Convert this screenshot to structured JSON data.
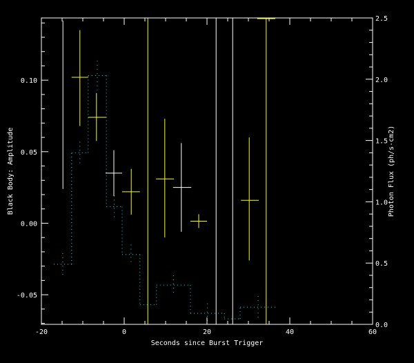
{
  "chart_data": {
    "type": "scatter",
    "xlabel": "Seconds since Burst Trigger",
    "ylabel": "Black Body: Amplitude",
    "ylabel_right": "Photon Flux (ph/s-cm2)",
    "xlim": [
      -20,
      60
    ],
    "ylim": [
      -0.0707,
      0.1435
    ],
    "ylim_right": [
      0.0,
      2.5
    ],
    "x_ticks": [
      "-20",
      "0",
      "20",
      "40",
      "60"
    ],
    "y_ticks": [
      "-0.05",
      "0.00",
      "0.05",
      "0.10"
    ],
    "y_ticks_right": [
      "0.0",
      "0.5",
      "1.0",
      "1.5",
      "2.0",
      "2.5"
    ],
    "grid": false,
    "colors": {
      "background": "#000000",
      "axes": "#ffffff",
      "white": "#ffffff",
      "yellow": "#ffff00",
      "flux": "#00e5e5"
    },
    "amplitude_points": [
      {
        "t": -14.8,
        "value": null,
        "low": 0.024,
        "high": 0.1415,
        "color": "white"
      },
      {
        "t": -10.7,
        "t_low": -12.7,
        "t_high": -8.7,
        "value": 0.102,
        "low": 0.068,
        "high": 0.135,
        "color": "yellow"
      },
      {
        "t": -6.7,
        "t_low": -8.7,
        "t_high": -4.3,
        "value": 0.074,
        "low": 0.0575,
        "high": 0.091,
        "color": "yellow"
      },
      {
        "t": -2.5,
        "t_low": -4.5,
        "t_high": -0.5,
        "value": 0.035,
        "low": 0.019,
        "high": 0.051,
        "color": "white"
      },
      {
        "t": 1.7,
        "t_low": -0.5,
        "t_high": 3.8,
        "value": 0.022,
        "low": 0.006,
        "high": 0.038,
        "color": "yellow"
      },
      {
        "t": 9.8,
        "t_low": 7.7,
        "t_high": 12.0,
        "value": 0.031,
        "low": -0.01,
        "high": 0.073,
        "color": "yellow"
      },
      {
        "t": 13.8,
        "t_low": 11.8,
        "t_high": 16.2,
        "value": 0.025,
        "low": -0.006,
        "high": 0.056,
        "color": "white"
      },
      {
        "t": 18.0,
        "t_low": 16.0,
        "t_high": 20.0,
        "value": 0.0014,
        "low": -0.0034,
        "high": 0.0063,
        "color": "yellow"
      },
      {
        "t": 30.2,
        "t_low": 28.2,
        "t_high": 32.5,
        "value": 0.016,
        "low": -0.026,
        "high": 0.06,
        "color": "yellow"
      }
    ],
    "unbounded_points": [
      {
        "t": 5.7,
        "color": "yellow"
      },
      {
        "t": 22.2,
        "color": "white"
      },
      {
        "t": 26.2,
        "color": "white"
      },
      {
        "t": 34.3,
        "color": "yellow",
        "cap_top": true
      }
    ],
    "flux_steps": [
      {
        "t0": -17.0,
        "t1": -12.7,
        "flux": 0.49,
        "err": 0.09
      },
      {
        "t0": -12.7,
        "t1": -8.7,
        "flux": 1.4,
        "err": 0.09
      },
      {
        "t0": -8.7,
        "t1": -4.3,
        "flux": 2.03,
        "err": 0.12
      },
      {
        "t0": -4.3,
        "t1": -0.5,
        "flux": 0.96,
        "err": 0.09
      },
      {
        "t0": -0.5,
        "t1": 3.8,
        "flux": 0.57,
        "err": 0.08
      },
      {
        "t0": 3.8,
        "t1": 7.8,
        "flux": 0.16,
        "err": 0.0
      },
      {
        "t0": 7.8,
        "t1": 16.0,
        "flux": 0.32,
        "err": 0.08
      },
      {
        "t0": 16.0,
        "t1": 24.2,
        "flux": 0.09,
        "err": 0.08
      },
      {
        "t0": 24.2,
        "t1": 28.0,
        "flux": 0.045,
        "err": 0.0
      },
      {
        "t0": 28.0,
        "t1": 36.7,
        "flux": 0.14,
        "err": 0.09
      }
    ]
  }
}
